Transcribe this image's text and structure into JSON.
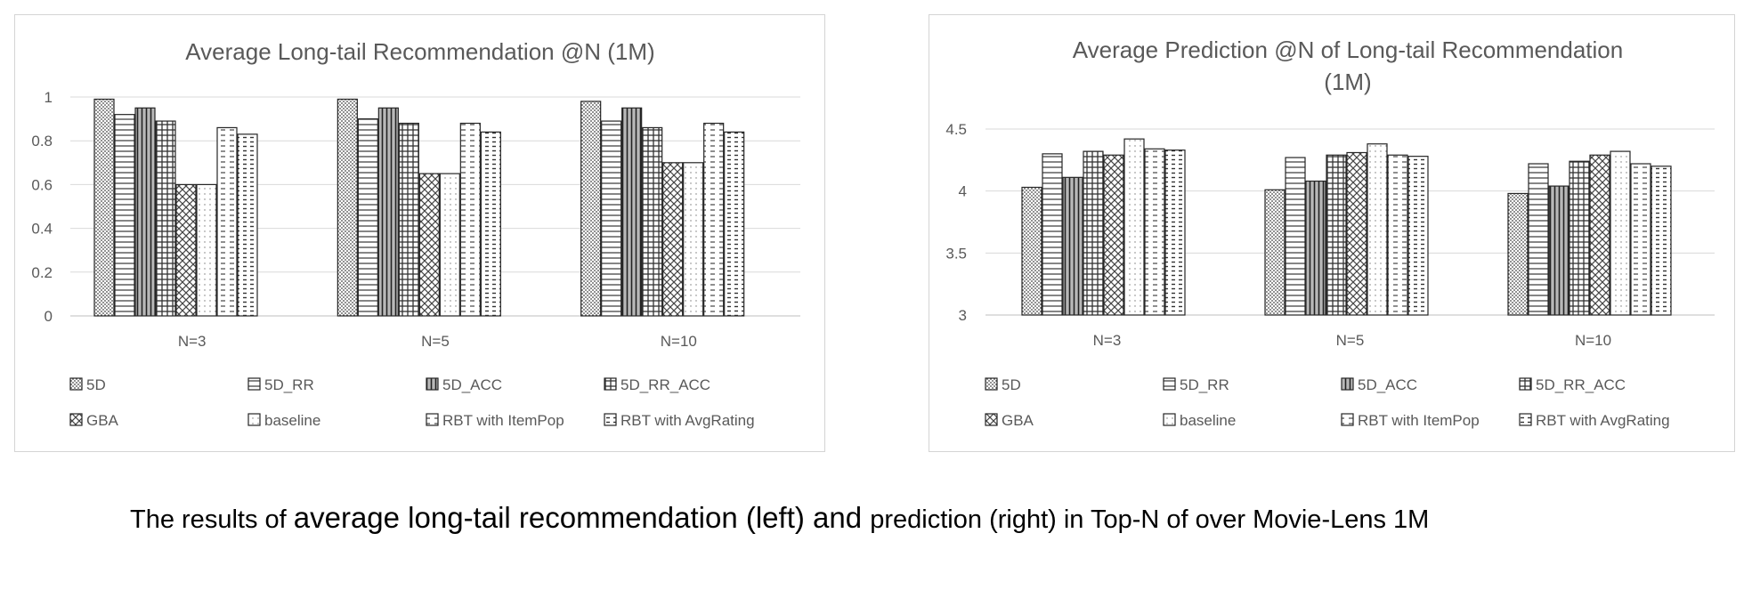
{
  "chart_data": [
    {
      "type": "bar",
      "title": "Average Long-tail Recommendation @N (1M)",
      "xlabel": "",
      "ylabel": "",
      "categories": [
        "N=3",
        "N=5",
        "N=10"
      ],
      "ylim": [
        0,
        1
      ],
      "yticks": [
        0,
        0.2,
        0.4,
        0.6,
        0.8,
        1
      ],
      "grid": true,
      "legend_position": "bottom",
      "series": [
        {
          "name": "5D",
          "pattern": "dots-dense",
          "values": [
            0.99,
            0.99,
            0.98
          ]
        },
        {
          "name": "5D_RR",
          "pattern": "hlines",
          "values": [
            0.92,
            0.9,
            0.89
          ]
        },
        {
          "name": "5D_ACC",
          "pattern": "dark-vlines",
          "values": [
            0.95,
            0.95,
            0.95
          ]
        },
        {
          "name": "5D_RR_ACC",
          "pattern": "grid",
          "values": [
            0.89,
            0.88,
            0.86
          ]
        },
        {
          "name": "GBA",
          "pattern": "crosshatch",
          "values": [
            0.6,
            0.65,
            0.7
          ]
        },
        {
          "name": "baseline",
          "pattern": "dots-sparse",
          "values": [
            0.6,
            0.65,
            0.7
          ]
        },
        {
          "name": "RBT with ItemPop",
          "pattern": "dashes",
          "values": [
            0.86,
            0.88,
            0.88
          ]
        },
        {
          "name": "RBT with AvgRating",
          "pattern": "dashes-dense",
          "values": [
            0.83,
            0.84,
            0.84
          ]
        }
      ]
    },
    {
      "type": "bar",
      "title": "Average Prediction @N of Long-tail Recommendation (1M)",
      "xlabel": "",
      "ylabel": "",
      "categories": [
        "N=3",
        "N=5",
        "N=10"
      ],
      "ylim": [
        3,
        4.5
      ],
      "yticks": [
        3,
        3.5,
        4,
        4.5
      ],
      "grid": true,
      "legend_position": "bottom",
      "series": [
        {
          "name": "5D",
          "pattern": "dots-dense",
          "values": [
            4.03,
            4.01,
            3.98
          ]
        },
        {
          "name": "5D_RR",
          "pattern": "hlines",
          "values": [
            4.3,
            4.27,
            4.22
          ]
        },
        {
          "name": "5D_ACC",
          "pattern": "dark-vlines",
          "values": [
            4.11,
            4.08,
            4.04
          ]
        },
        {
          "name": "5D_RR_ACC",
          "pattern": "grid",
          "values": [
            4.32,
            4.29,
            4.24
          ]
        },
        {
          "name": "GBA",
          "pattern": "crosshatch",
          "values": [
            4.29,
            4.31,
            4.29
          ]
        },
        {
          "name": "baseline",
          "pattern": "dots-sparse",
          "values": [
            4.42,
            4.38,
            4.32
          ]
        },
        {
          "name": "RBT with ItemPop",
          "pattern": "dashes",
          "values": [
            4.34,
            4.29,
            4.22
          ]
        },
        {
          "name": "RBT with AvgRating",
          "pattern": "dashes-dense",
          "values": [
            4.33,
            4.28,
            4.2
          ]
        }
      ]
    }
  ],
  "caption": {
    "part1": "The results of ",
    "part2": "average long-tail recommendation (left) and ",
    "part3": "prediction (right) in Top-N of over Movie-Lens 1M"
  }
}
